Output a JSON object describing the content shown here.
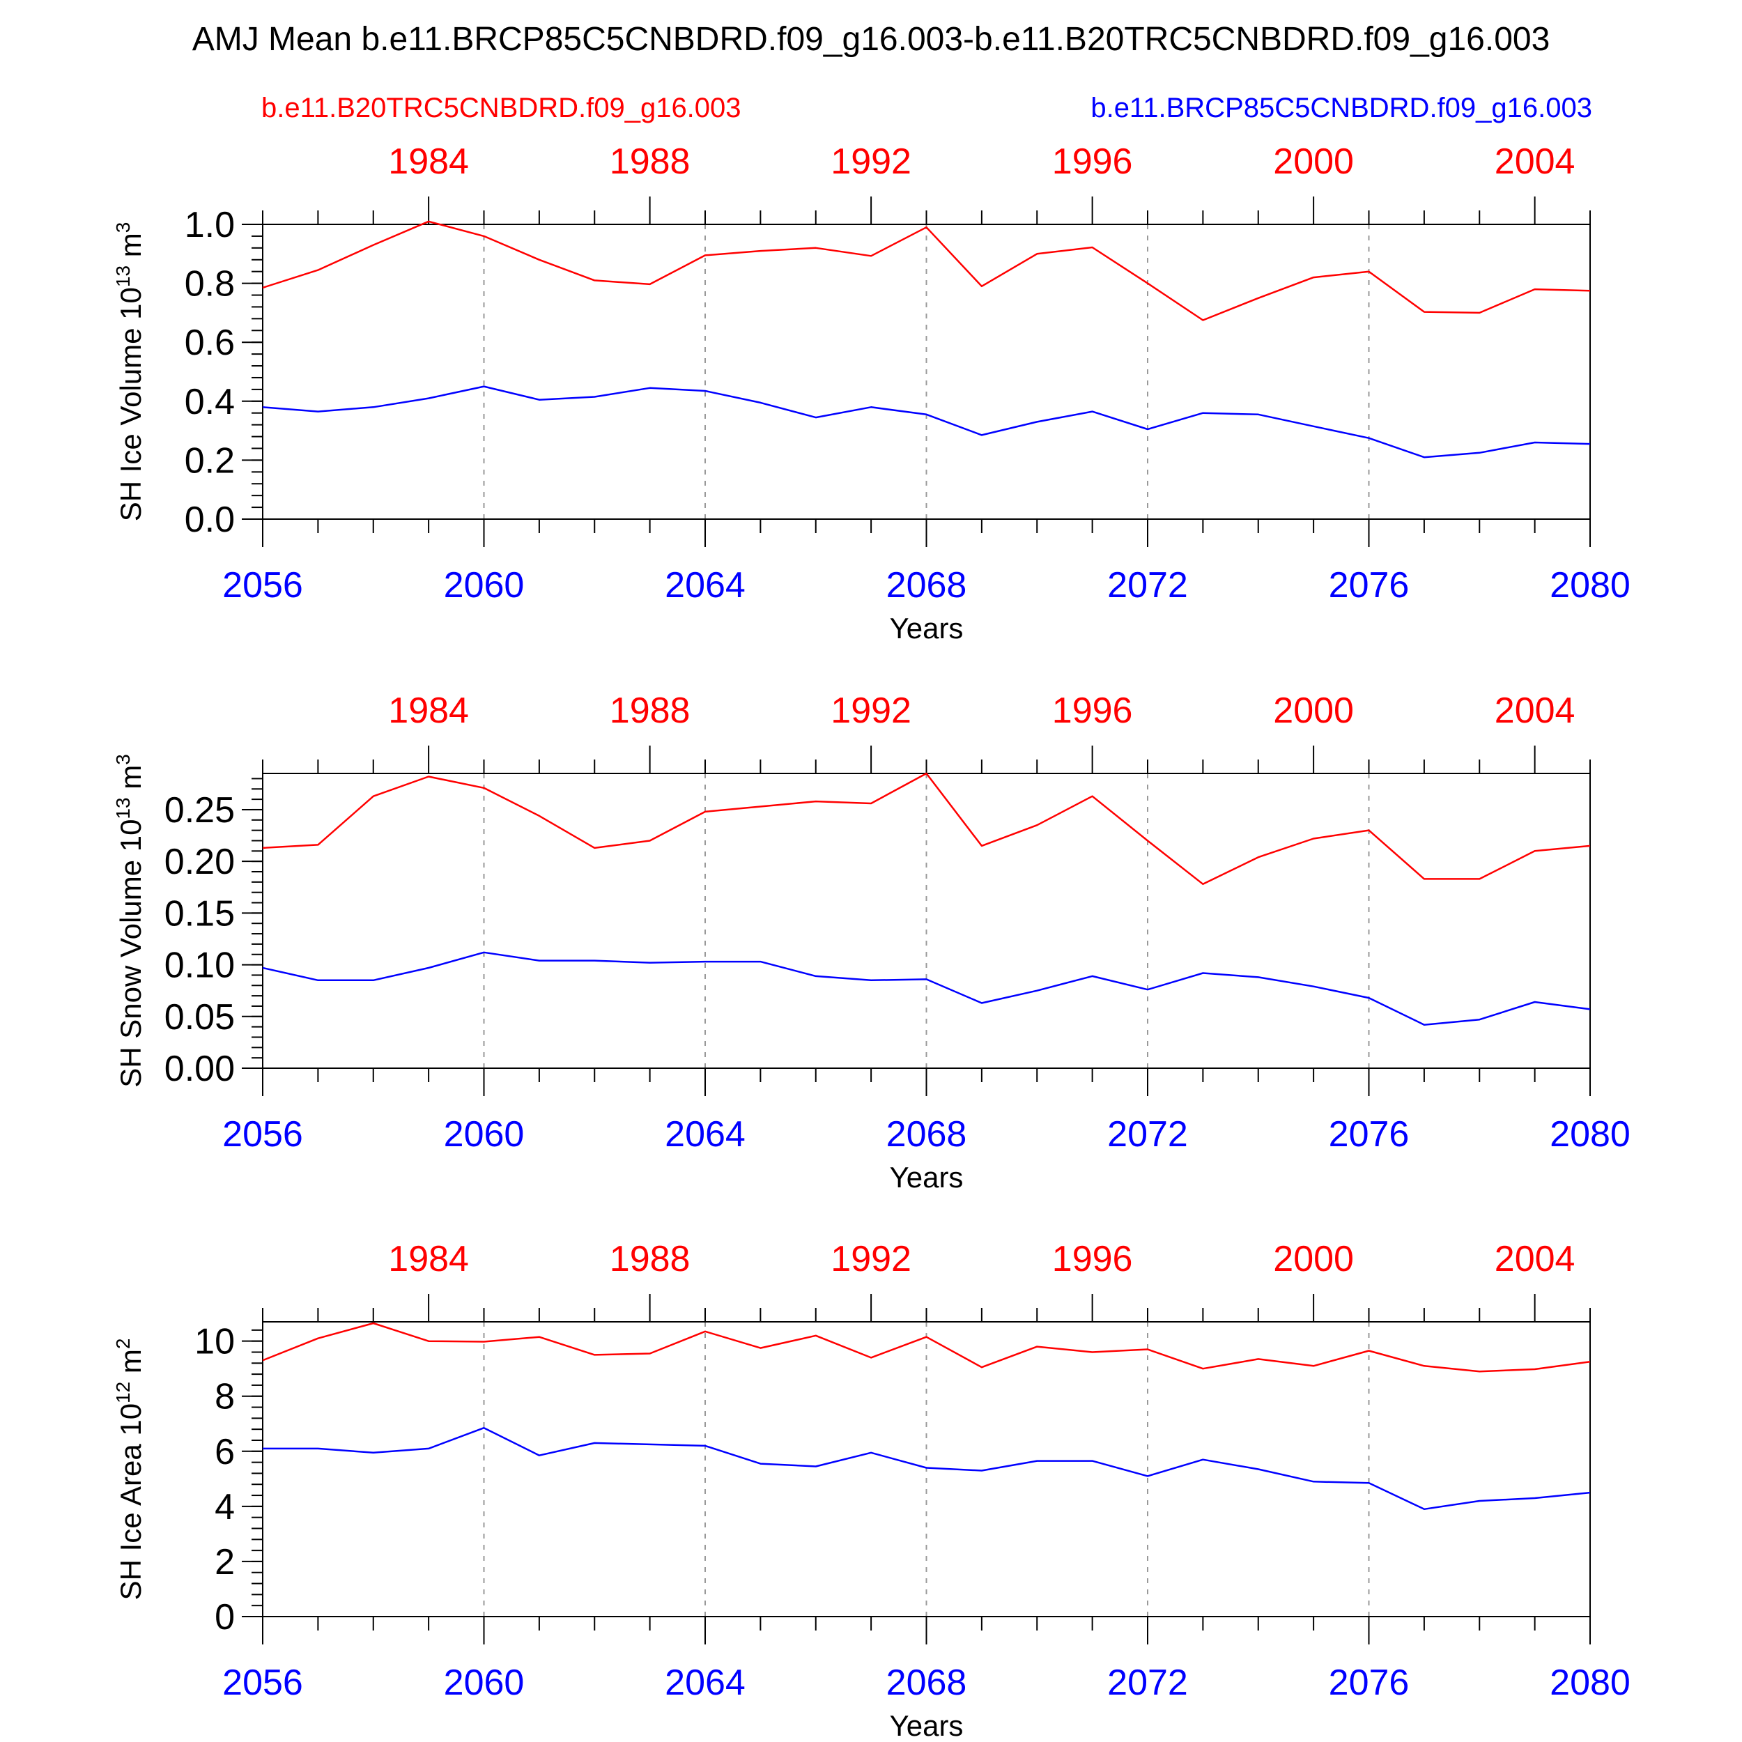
{
  "figure": {
    "title": "AMJ Mean b.e11.BRCP85C5CNBDRD.f09_g16.003-b.e11.B20TRC5CNBDRD.f09_g16.003",
    "legend_red": "b.e11.B20TRC5CNBDRD.f09_g16.003",
    "legend_blue": "b.e11.BRCP85C5CNBDRD.f09_g16.003",
    "red_color": "#ff0000",
    "blue_color": "#0000ff"
  },
  "chart_data": [
    {
      "type": "line",
      "ylabel_main": "SH Ice Volume 10",
      "ylabel_exp": "13",
      "ylabel_unit": " m",
      "ylabel_unit_exp": "3",
      "xlabel": "Years",
      "ylim": [
        0,
        1.0
      ],
      "yticks": [
        0.0,
        0.2,
        0.4,
        0.6,
        0.8,
        1.0
      ],
      "ytick_labels": [
        "0.0",
        "0.2",
        "0.4",
        "0.6",
        "0.8",
        "1.0"
      ],
      "bottom_ticks": [
        "2056",
        "2060",
        "2064",
        "2068",
        "2072",
        "2076",
        "2080"
      ],
      "top_ticks": [
        "1984",
        "1988",
        "1992",
        "1996",
        "2000",
        "2004"
      ],
      "x_bottom": [
        2056,
        2080
      ],
      "series": [
        {
          "name": "b.e11.B20TRC5CNBDRD.f09_g16.003",
          "color": "red",
          "years": [
            1981,
            1982,
            1983,
            1984,
            1985,
            1986,
            1987,
            1988,
            1989,
            1990,
            1991,
            1992,
            1993,
            1994,
            1995,
            1996,
            1997,
            1998,
            1999,
            2000,
            2001,
            2002,
            2003,
            2004,
            2005
          ],
          "values": [
            0.785,
            0.845,
            0.93,
            1.01,
            0.96,
            0.88,
            0.81,
            0.797,
            0.895,
            0.91,
            0.92,
            0.893,
            0.99,
            0.79,
            0.9,
            0.922,
            0.8,
            0.675,
            0.75,
            0.82,
            0.84,
            0.703,
            0.7,
            0.78,
            0.775
          ]
        },
        {
          "name": "b.e11.BRCP85C5CNBDRD.f09_g16.003",
          "color": "blue",
          "years": [
            2056,
            2057,
            2058,
            2059,
            2060,
            2061,
            2062,
            2063,
            2064,
            2065,
            2066,
            2067,
            2068,
            2069,
            2070,
            2071,
            2072,
            2073,
            2074,
            2075,
            2076,
            2077,
            2078,
            2079,
            2080
          ],
          "values": [
            0.38,
            0.365,
            0.38,
            0.41,
            0.45,
            0.405,
            0.415,
            0.445,
            0.435,
            0.395,
            0.345,
            0.38,
            0.355,
            0.285,
            0.33,
            0.365,
            0.305,
            0.36,
            0.355,
            0.315,
            0.275,
            0.21,
            0.225,
            0.26,
            0.255
          ]
        }
      ]
    },
    {
      "type": "line",
      "ylabel_main": "SH Snow Volume 10",
      "ylabel_exp": "13",
      "ylabel_unit": " m",
      "ylabel_unit_exp": "3",
      "xlabel": "Years",
      "ylim": [
        0,
        0.285
      ],
      "yticks": [
        0.0,
        0.05,
        0.1,
        0.15,
        0.2,
        0.25
      ],
      "ytick_labels": [
        "0.00",
        "0.05",
        "0.10",
        "0.15",
        "0.20",
        "0.25"
      ],
      "bottom_ticks": [
        "2056",
        "2060",
        "2064",
        "2068",
        "2072",
        "2076",
        "2080"
      ],
      "top_ticks": [
        "1984",
        "1988",
        "1992",
        "1996",
        "2000",
        "2004"
      ],
      "x_bottom": [
        2056,
        2080
      ],
      "series": [
        {
          "name": "b.e11.B20TRC5CNBDRD.f09_g16.003",
          "color": "red",
          "years": [
            1981,
            1982,
            1983,
            1984,
            1985,
            1986,
            1987,
            1988,
            1989,
            1990,
            1991,
            1992,
            1993,
            1994,
            1995,
            1996,
            1997,
            1998,
            1999,
            2000,
            2001,
            2002,
            2003,
            2004,
            2005
          ],
          "values": [
            0.213,
            0.216,
            0.263,
            0.282,
            0.271,
            0.244,
            0.213,
            0.22,
            0.248,
            0.253,
            0.258,
            0.256,
            0.285,
            0.215,
            0.235,
            0.263,
            0.22,
            0.178,
            0.204,
            0.222,
            0.23,
            0.183,
            0.183,
            0.21,
            0.215
          ]
        },
        {
          "name": "b.e11.BRCP85C5CNBDRD.f09_g16.003",
          "color": "blue",
          "years": [
            2056,
            2057,
            2058,
            2059,
            2060,
            2061,
            2062,
            2063,
            2064,
            2065,
            2066,
            2067,
            2068,
            2069,
            2070,
            2071,
            2072,
            2073,
            2074,
            2075,
            2076,
            2077,
            2078,
            2079,
            2080
          ],
          "values": [
            0.097,
            0.085,
            0.085,
            0.097,
            0.112,
            0.104,
            0.104,
            0.102,
            0.103,
            0.103,
            0.089,
            0.085,
            0.086,
            0.063,
            0.075,
            0.089,
            0.076,
            0.092,
            0.088,
            0.079,
            0.068,
            0.042,
            0.047,
            0.064,
            0.057
          ]
        }
      ]
    },
    {
      "type": "line",
      "ylabel_main": "SH Ice Area 10",
      "ylabel_exp": "12",
      "ylabel_unit": " m",
      "ylabel_unit_exp": "2",
      "xlabel": "Years",
      "ylim": [
        0,
        10.7
      ],
      "yticks": [
        0,
        2,
        4,
        6,
        8,
        10
      ],
      "ytick_labels": [
        "0",
        "2",
        "4",
        "6",
        "8",
        "10"
      ],
      "bottom_ticks": [
        "2056",
        "2060",
        "2064",
        "2068",
        "2072",
        "2076",
        "2080"
      ],
      "top_ticks": [
        "1984",
        "1988",
        "1992",
        "1996",
        "2000",
        "2004"
      ],
      "x_bottom": [
        2056,
        2080
      ],
      "series": [
        {
          "name": "b.e11.B20TRC5CNBDRD.f09_g16.003",
          "color": "red",
          "years": [
            1981,
            1982,
            1983,
            1984,
            1985,
            1986,
            1987,
            1988,
            1989,
            1990,
            1991,
            1992,
            1993,
            1994,
            1995,
            1996,
            1997,
            1998,
            1999,
            2000,
            2001,
            2002,
            2003,
            2004,
            2005
          ],
          "values": [
            9.3,
            10.1,
            10.65,
            10.0,
            9.98,
            10.15,
            9.5,
            9.55,
            10.35,
            9.75,
            10.2,
            9.4,
            10.15,
            9.05,
            9.8,
            9.6,
            9.7,
            9.0,
            9.35,
            9.1,
            9.65,
            9.1,
            8.9,
            8.98,
            9.25
          ]
        },
        {
          "name": "b.e11.BRCP85C5CNBDRD.f09_g16.003",
          "color": "blue",
          "years": [
            2056,
            2057,
            2058,
            2059,
            2060,
            2061,
            2062,
            2063,
            2064,
            2065,
            2066,
            2067,
            2068,
            2069,
            2070,
            2071,
            2072,
            2073,
            2074,
            2075,
            2076,
            2077,
            2078,
            2079,
            2080
          ],
          "values": [
            6.1,
            6.1,
            5.95,
            6.1,
            6.85,
            5.85,
            6.3,
            6.25,
            6.2,
            5.55,
            5.45,
            5.95,
            5.4,
            5.3,
            5.65,
            5.65,
            5.1,
            5.7,
            5.35,
            4.9,
            4.85,
            3.9,
            4.2,
            4.3,
            4.5
          ]
        }
      ]
    }
  ]
}
